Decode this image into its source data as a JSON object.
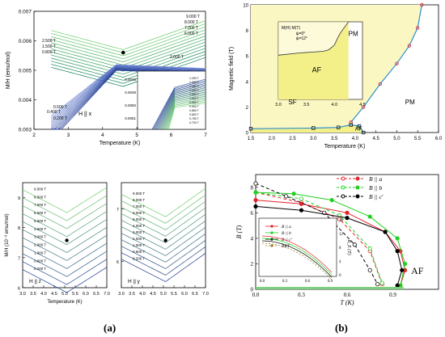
{
  "panel_labels": {
    "a": "(a)",
    "b": "(b)"
  },
  "colors": {
    "green_dark": "#0e7d5a",
    "green_light": "#6ccf6c",
    "blue_dark": "#1f3a93",
    "blue_light": "#6f86d6",
    "teal": "#25a17f",
    "pm_yellow": "#fbf7c2",
    "af_yellow": "#f3f08a",
    "red": "#e8202a",
    "cyan": "#2a8fd1",
    "green_b": "#1fd11f",
    "black": "#000000",
    "olive": "#9a7a20"
  },
  "chart_data": [
    {
      "id": "a-top",
      "type": "line",
      "xlabel": "Temperature (K)",
      "ylabel": "M/H (emu/mol)",
      "xlim": [
        2,
        7
      ],
      "ylim": [
        0.003,
        0.007
      ],
      "xticks": [
        2,
        3,
        4,
        5,
        6,
        7
      ],
      "yticks": [
        0.003,
        0.004,
        0.005,
        0.006,
        0.007
      ],
      "annotation": "H || x",
      "field_labels_high": [
        "9.000 T",
        "8.000 T",
        "7.000 T",
        "6.000 T",
        "2.500 T",
        "1.500 T",
        "0.800 T",
        "2.000 T"
      ],
      "field_labels_low": [
        "0.500 T",
        "0.400 T",
        "0.200 T"
      ],
      "inset": {
        "xlim": [
          4,
          5
        ],
        "ylim": [
          0.0047,
          0.0052
        ],
        "yticks": [
          0.0048,
          0.0049,
          0.005,
          0.0051
        ],
        "field_labels_right": [
          "1.250 T",
          "1.200 T",
          "1.150 T",
          "1.100 T",
          "1.050 T",
          "1.000 T",
          "0.950 T",
          "0.900 T",
          "0.850 T",
          "0.800 T",
          "0.750 T",
          "0.700 T"
        ]
      }
    },
    {
      "id": "a-bottom-left",
      "type": "line",
      "xlabel": "Temperature (K)",
      "ylabel": "M/H (10⁻³ emu/mol)",
      "xlim": [
        3.0,
        7.0
      ],
      "ylim": [
        6,
        9.5
      ],
      "xticks": [
        "3.0",
        "3.5",
        "4.0",
        "4.5",
        "5.0",
        "5.5",
        "6.0",
        "6.5",
        "7.0"
      ],
      "yticks": [
        6,
        7,
        8,
        9
      ],
      "annotation": "H || z",
      "field_labels": [
        "9.000 T",
        "8.000 T",
        "7.000 T",
        "6.000 T",
        "5.000 T",
        "4.000 T",
        "3.000 T",
        "2.000 T",
        "1.000 T",
        "0.600 T",
        "0.200 T"
      ]
    },
    {
      "id": "a-bottom-right",
      "type": "line",
      "xlim": [
        3.0,
        7.0
      ],
      "ylim": [
        5.5,
        7.5
      ],
      "xticks": [
        "3.0",
        "3.5",
        "4.0",
        "4.5",
        "5.0",
        "5.5",
        "6.0",
        "6.5",
        "7.0"
      ],
      "yticks": [
        6,
        7
      ],
      "annotation": "H || y",
      "field_labels": [
        "9.000 T",
        "8.000 T",
        "7.000 T",
        "6.000 T",
        "5.000 T",
        "4.000 T",
        "3.000 T",
        "2.000 T",
        "1.000 T",
        "0.600 T",
        "0.200 T"
      ]
    },
    {
      "id": "b-top",
      "type": "scatter",
      "xlabel": "Temperature (K)",
      "ylabel": "Magnetic field (T)",
      "xlim": [
        1.5,
        6.0
      ],
      "ylim": [
        0,
        10
      ],
      "xticks": [
        "1.5",
        "2.0",
        "2.5",
        "3.0",
        "3.5",
        "4.0",
        "4.5",
        "5.0",
        "5.5",
        "6.0"
      ],
      "yticks": [
        0,
        2,
        4,
        6,
        8,
        10
      ],
      "regions": [
        "SF",
        "AF",
        "PM"
      ],
      "phase_boundary_upper": {
        "x": [
          3.9,
          4.2,
          4.6,
          5.0,
          5.3,
          5.5,
          5.6
        ],
        "y": [
          0.8,
          2.0,
          3.8,
          5.4,
          6.8,
          8.2,
          10
        ]
      },
      "phase_boundary_lower": {
        "x": [
          1.5,
          3.0,
          3.6,
          3.9,
          4.1,
          4.2
        ],
        "y": [
          0.3,
          0.35,
          0.4,
          0.6,
          0.5,
          0.0
        ]
      },
      "inset": {
        "xlim": [
          3.0,
          4.5
        ],
        "ylim": [
          0,
          1.0
        ],
        "xticks": [
          "3.0",
          "3.5",
          "4.0",
          "4.5"
        ],
        "regions": [
          "AF",
          "PM"
        ],
        "legend": {
          "cols": [
            "M(H)",
            "M(T)"
          ],
          "rows": [
            "ψ=0°",
            "ψ=12°"
          ]
        },
        "boundary": {
          "x": [
            3.0,
            3.4,
            3.8,
            3.9,
            4.0,
            4.05,
            4.1,
            4.15,
            4.2,
            4.25
          ],
          "y": [
            0.57,
            0.6,
            0.62,
            0.64,
            0.7,
            0.78,
            0.85,
            0.9,
            0.95,
            1.0
          ]
        }
      }
    },
    {
      "id": "b-bottom",
      "type": "line",
      "xlabel": "T (K)",
      "ylabel": "B (T)",
      "xlim": [
        0,
        1.2
      ],
      "ylim": [
        0,
        9
      ],
      "xticks": [
        "0.0",
        "0.3",
        "0.6",
        "0.9"
      ],
      "yticks": [
        0,
        2,
        4,
        6,
        8
      ],
      "region": "AF",
      "series": [
        {
          "name": "B || a (open)",
          "color": "#e8202a",
          "dashed": true,
          "x": [
            0,
            0.3,
            0.55,
            0.75,
            0.83
          ],
          "y": [
            7.6,
            6.8,
            5.5,
            3.0,
            0.4
          ]
        },
        {
          "name": "B || a",
          "color": "#e8202a",
          "x": [
            0,
            0.3,
            0.6,
            0.85,
            0.95,
            0.98,
            0.95
          ],
          "y": [
            7.0,
            6.7,
            6.0,
            4.5,
            3.0,
            1.5,
            0.3
          ]
        },
        {
          "name": "B || b (open)",
          "color": "#1fd11f",
          "dashed": true,
          "x": [
            0,
            0.3,
            0.55,
            0.75,
            0.83
          ],
          "y": [
            7.6,
            7.1,
            5.8,
            3.2,
            0.5
          ]
        },
        {
          "name": "B || b",
          "color": "#1fd11f",
          "x": [
            0,
            0.25,
            0.5,
            0.75,
            0.93,
            0.98,
            0.95
          ],
          "y": [
            7.6,
            7.5,
            7.0,
            5.7,
            4.0,
            2.0,
            0.3
          ]
        },
        {
          "name": "B || c' (open)",
          "color": "#000000",
          "dashed": true,
          "x": [
            0,
            0.2,
            0.45,
            0.65,
            0.75,
            0.8
          ],
          "y": [
            8.3,
            7.3,
            6.0,
            3.5,
            1.5,
            0.4
          ]
        },
        {
          "name": "B || c'",
          "color": "#000000",
          "x": [
            0,
            0.3,
            0.6,
            0.85,
            0.93,
            0.96,
            0.93
          ],
          "y": [
            6.5,
            6.2,
            5.6,
            4.5,
            3.0,
            1.5,
            0.3
          ]
        }
      ],
      "legend": [
        "B || a",
        "B || b",
        "B || c'"
      ],
      "inset": {
        "ylabel": "B_E (T)",
        "yticks": [
          0,
          4,
          8,
          12,
          16
        ],
        "xticks": [
          "0.0",
          "0.3",
          "0.6",
          "0.9"
        ],
        "legend": [
          "B || a",
          "B || b",
          "B || c'",
          "BKT"
        ]
      }
    }
  ]
}
